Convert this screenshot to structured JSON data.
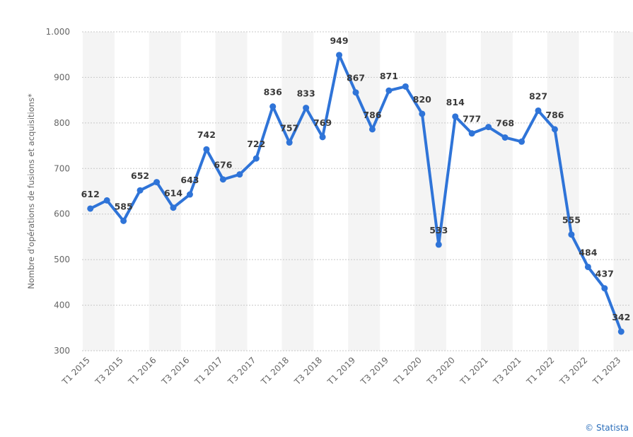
{
  "chart_data": {
    "type": "line",
    "ylabel": "Nombre d'opérations de fusions et acquisitions*",
    "ylim": [
      300,
      1000
    ],
    "yticks": [
      {
        "value": 300,
        "label": "300"
      },
      {
        "value": 400,
        "label": "400"
      },
      {
        "value": 500,
        "label": "500"
      },
      {
        "value": 600,
        "label": "600"
      },
      {
        "value": 700,
        "label": "700"
      },
      {
        "value": 800,
        "label": "800"
      },
      {
        "value": 900,
        "label": "900"
      },
      {
        "value": 1000,
        "label": "1.000"
      }
    ],
    "grid": true,
    "x": [
      "T1 2015",
      "T2 2015",
      "T3 2015",
      "T4 2015",
      "T1 2016",
      "T2 2016",
      "T3 2016",
      "T4 2016",
      "T1 2017",
      "T2 2017",
      "T3 2017",
      "T4 2017",
      "T1 2018",
      "T2 2018",
      "T3 2018",
      "T4 2018",
      "T1 2019",
      "T2 2019",
      "T3 2019",
      "T4 2019",
      "T1 2020",
      "T2 2020",
      "T3 2020",
      "T4 2020",
      "T1 2021",
      "T2 2021",
      "T3 2021",
      "T4 2021",
      "T1 2022",
      "T2 2022",
      "T3 2022",
      "T4 2022",
      "T1 2023"
    ],
    "xtick_labels": [
      "T1 2015",
      "T3 2015",
      "T1 2016",
      "T3 2016",
      "T1 2017",
      "T3 2017",
      "T1 2018",
      "T3 2018",
      "T1 2019",
      "T3 2019",
      "T1 2020",
      "T3 2020",
      "T1 2021",
      "T3 2021",
      "T1 2022",
      "T3 2022",
      "T1 2023"
    ],
    "series": [
      {
        "color": "#2f74d8",
        "values": [
          612,
          630,
          585,
          652,
          670,
          614,
          643,
          742,
          676,
          687,
          722,
          836,
          757,
          833,
          769,
          949,
          867,
          786,
          871,
          880,
          820,
          533,
          814,
          777,
          791,
          768,
          759,
          827,
          786,
          555,
          484,
          437,
          342
        ],
        "labels": [
          "612",
          "",
          "585",
          "652",
          "",
          "614",
          "643",
          "742",
          "676",
          "",
          "722",
          "836",
          "757",
          "833",
          "769",
          "949",
          "867",
          "786",
          "871",
          "",
          "820",
          "533",
          "814",
          "777",
          "",
          "768",
          "",
          "827",
          "786",
          "555",
          "484",
          "437",
          "342"
        ]
      }
    ]
  },
  "copyright": "© Statista"
}
